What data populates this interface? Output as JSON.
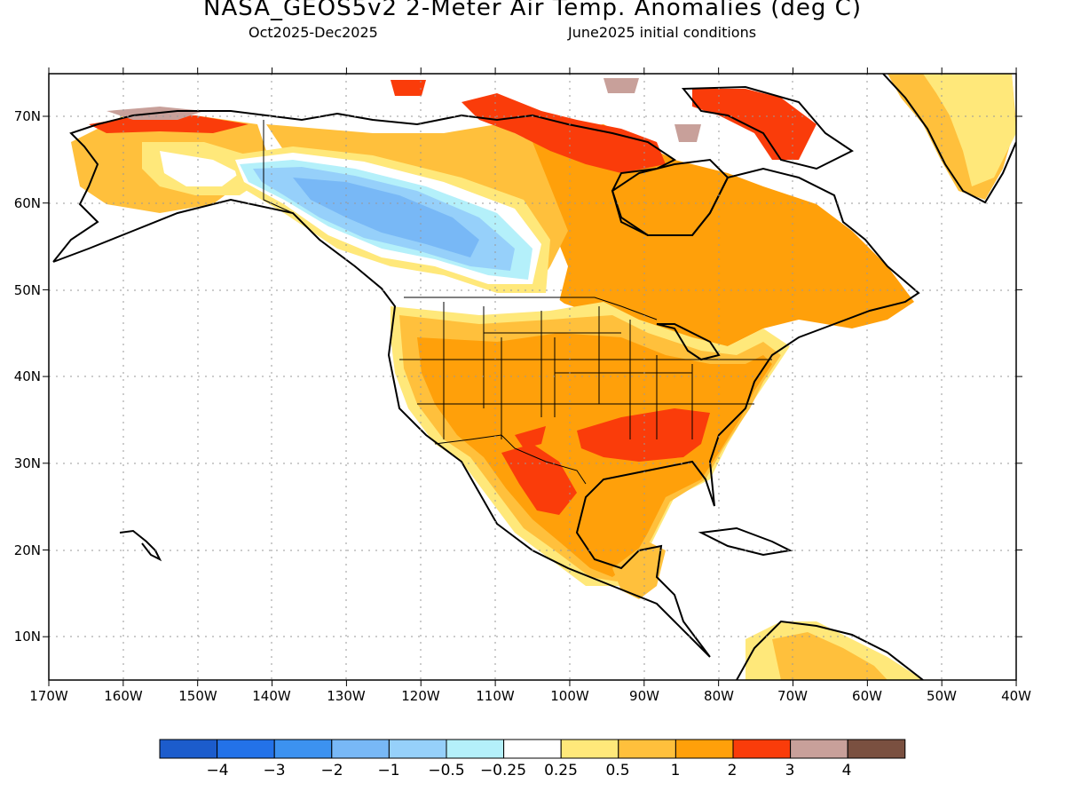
{
  "title": "NASA_GEOS5v2 2-Meter Air Temp. Anomalies (deg C)",
  "period": "Oct2025-Dec2025",
  "init": "June2025 initial conditions",
  "axes": {
    "lon_labels": [
      "170W",
      "160W",
      "150W",
      "140W",
      "130W",
      "120W",
      "110W",
      "100W",
      "90W",
      "80W",
      "70W",
      "60W",
      "50W",
      "40W"
    ],
    "lat_labels": [
      "70N",
      "60N",
      "50N",
      "40N",
      "30N",
      "20N",
      "10N"
    ]
  },
  "colorbar": {
    "colors": [
      "#1c5ccc",
      "#2372e8",
      "#3c92f0",
      "#78b8f6",
      "#96d0fa",
      "#b4f0fa",
      "#ffffff",
      "#ffe87a",
      "#ffc03c",
      "#ffa00a",
      "#fa3c0a",
      "#c8a09a",
      "#7a5040"
    ],
    "labels": [
      "−4",
      "−3",
      "−2",
      "−1",
      "−0.5",
      "−0.25",
      "0.25",
      "0.5",
      "1",
      "2",
      "3",
      "4"
    ]
  },
  "palette": {
    "white": "#ffffff",
    "yellow": "#ffe87a",
    "lorange": "#ffc03c",
    "orange": "#ffa00a",
    "red": "#fa3c0a",
    "tan": "#c8a09a",
    "lblue": "#b4f0fa",
    "blue1": "#96d0fa",
    "blue2": "#78b8f6"
  }
}
